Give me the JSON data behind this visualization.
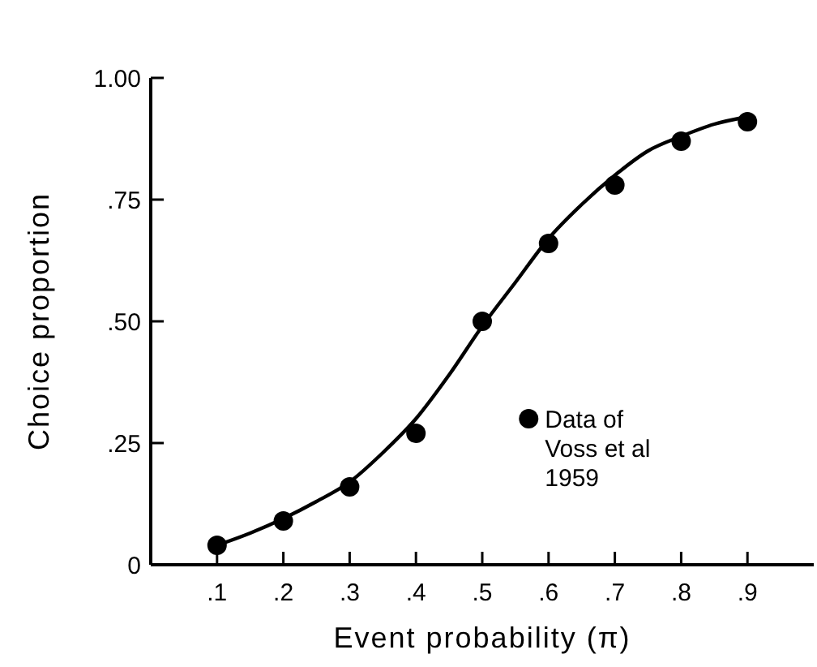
{
  "chart_data": {
    "type": "scatter",
    "xlabel": "Event probability (π)",
    "ylabel": "Choice proportion",
    "xlim": [
      0,
      1
    ],
    "ylim": [
      0,
      1
    ],
    "xticks": [
      {
        "value": 0.1,
        "label": ".1"
      },
      {
        "value": 0.2,
        "label": ".2"
      },
      {
        "value": 0.3,
        "label": ".3"
      },
      {
        "value": 0.4,
        "label": ".4"
      },
      {
        "value": 0.5,
        "label": ".5"
      },
      {
        "value": 0.6,
        "label": ".6"
      },
      {
        "value": 0.7,
        "label": ".7"
      },
      {
        "value": 0.8,
        "label": ".8"
      },
      {
        "value": 0.9,
        "label": ".9"
      }
    ],
    "yticks": [
      0,
      {
        "value": 0.25,
        "label": ".25"
      },
      {
        "value": 0.5,
        "label": ".50"
      },
      {
        "value": 0.75,
        "label": ".75"
      },
      {
        "value": 1,
        "label": "1.00"
      }
    ],
    "series": [
      {
        "name": "Data of Voss et al 1959",
        "color": "#000000",
        "marker": "circle",
        "x": [
          0.1,
          0.2,
          0.3,
          0.4,
          0.5,
          0.6,
          0.7,
          0.8,
          0.9
        ],
        "values": [
          0.04,
          0.09,
          0.16,
          0.27,
          0.5,
          0.66,
          0.78,
          0.87,
          0.91
        ]
      },
      {
        "type": "line",
        "color": "#000000",
        "marker": "none",
        "line_style": "solid",
        "x": [
          0.1,
          0.15,
          0.2,
          0.25,
          0.3,
          0.35,
          0.4,
          0.45,
          0.5,
          0.55,
          0.6,
          0.65,
          0.7,
          0.75,
          0.8,
          0.85,
          0.9
        ],
        "values": [
          0.04,
          0.065,
          0.095,
          0.13,
          0.17,
          0.23,
          0.3,
          0.39,
          0.49,
          0.58,
          0.67,
          0.74,
          0.8,
          0.85,
          0.88,
          0.905,
          0.92
        ]
      }
    ],
    "legend": "bottom right",
    "grid": false
  }
}
